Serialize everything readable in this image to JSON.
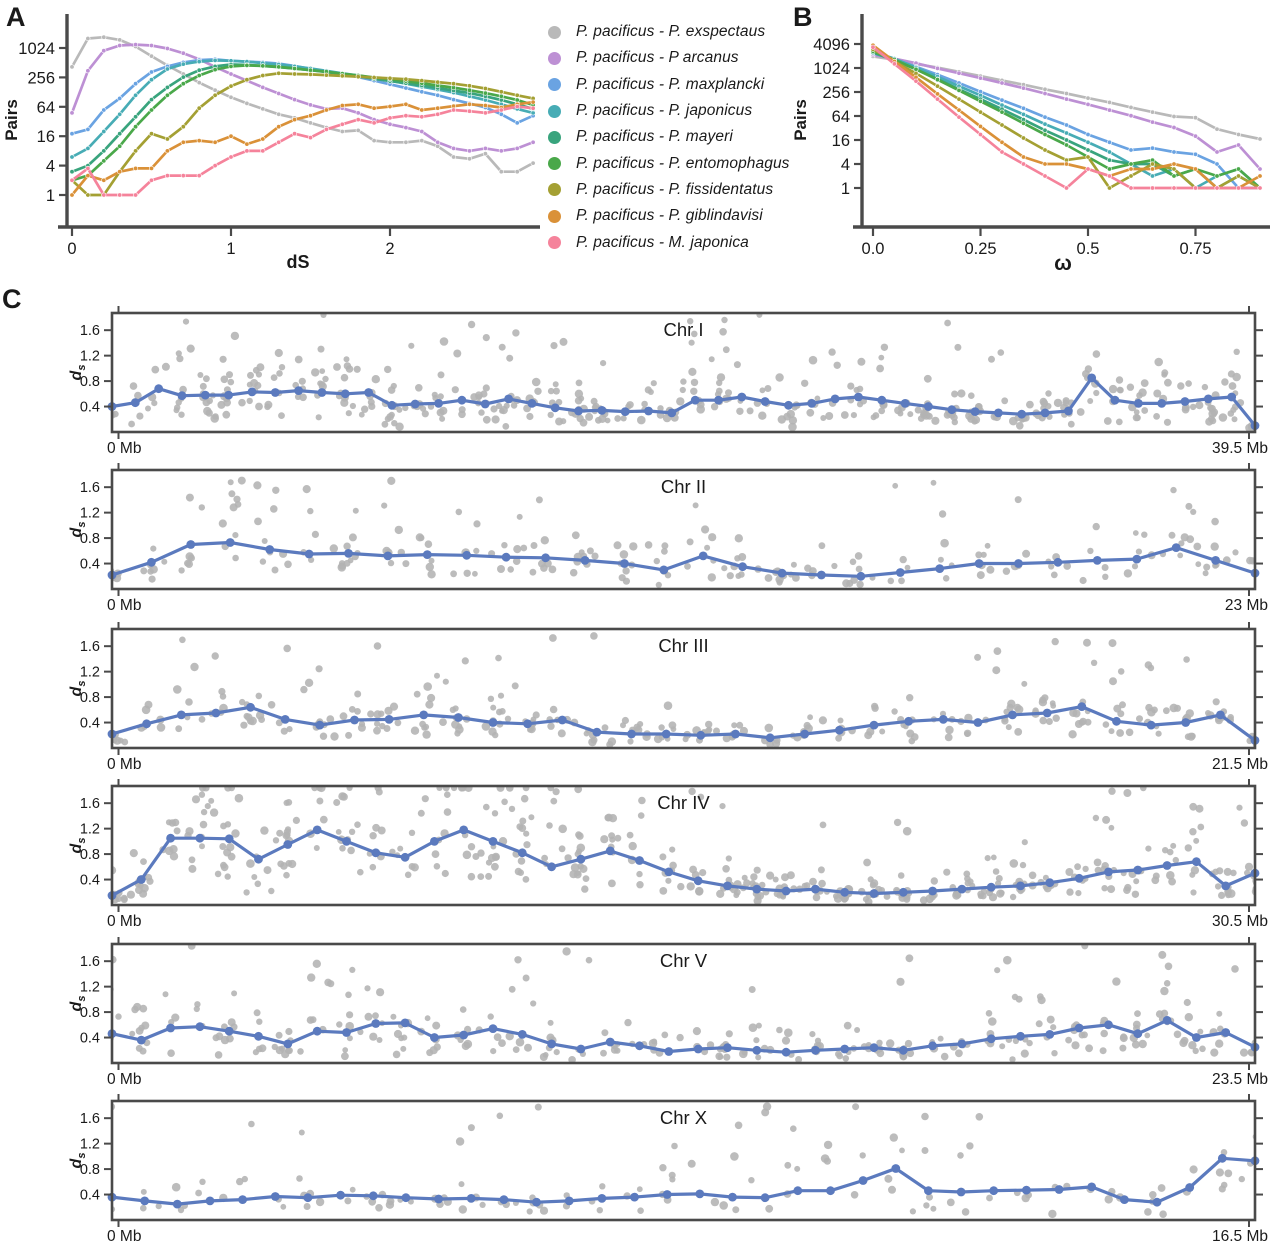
{
  "panel_labels": {
    "a": "A",
    "b": "B",
    "c": "C"
  },
  "colors": {
    "axis": "#4a4a4a",
    "text": "#1a1a1a",
    "mean_line": "#5b7abe",
    "scatter": "#b3b3b3"
  },
  "chart_data": [
    {
      "id": "A",
      "type": "line",
      "ylabel": "Pairs",
      "xlabel": "dS",
      "yscale": "log4",
      "y_ticks": [
        1,
        4,
        16,
        64,
        256,
        1024
      ],
      "x_ticks": [
        {
          "v": 0,
          "label": "0"
        },
        {
          "v": 1,
          "label": "1"
        },
        {
          "v": 2,
          "label": "2"
        }
      ],
      "x_start": 0,
      "x_step": 0.1,
      "series": [
        {
          "name": "P. pacificus - P. exspectaus",
          "color": "#b9b9b9",
          "values": [
            420,
            1600,
            1700,
            1500,
            1100,
            700,
            450,
            300,
            200,
            140,
            100,
            75,
            58,
            45,
            38,
            30,
            24,
            20,
            21,
            13,
            12,
            12,
            13,
            10,
            6,
            5.5,
            7,
            3,
            3,
            4.5
          ]
        },
        {
          "name": "P. pacificus - P arcanus",
          "color": "#bd90d4",
          "values": [
            48,
            350,
            900,
            1150,
            1200,
            1150,
            1000,
            800,
            600,
            420,
            300,
            220,
            160,
            120,
            90,
            70,
            58,
            60,
            48,
            35,
            28,
            24,
            20,
            12,
            9,
            8,
            9,
            8,
            9,
            12
          ]
        },
        {
          "name": "P. pacificus - P. maxplancki",
          "color": "#6aa3e2",
          "values": [
            18,
            22,
            55,
            95,
            190,
            330,
            430,
            520,
            580,
            600,
            560,
            540,
            520,
            490,
            440,
            380,
            330,
            300,
            260,
            220,
            185,
            155,
            130,
            110,
            90,
            75,
            62,
            45,
            30,
            42
          ]
        },
        {
          "name": "P. pacificus - P. japonicus",
          "color": "#47acb5",
          "values": [
            6,
            9,
            20,
            45,
            110,
            230,
            380,
            480,
            540,
            570,
            560,
            540,
            500,
            470,
            430,
            390,
            350,
            310,
            280,
            250,
            220,
            190,
            165,
            145,
            125,
            105,
            88,
            72,
            58,
            48
          ]
        },
        {
          "name": "P. pacificus - P. mayeri",
          "color": "#39a47d",
          "values": [
            3,
            4,
            8,
            18,
            40,
            90,
            160,
            260,
            360,
            430,
            470,
            460,
            440,
            415,
            390,
            360,
            330,
            300,
            270,
            240,
            215,
            195,
            175,
            155,
            138,
            122,
            105,
            88,
            72,
            58
          ]
        },
        {
          "name": "P. pacificus - P. entomophagus",
          "color": "#4aa84a",
          "values": [
            2,
            2.5,
            5,
            10,
            25,
            55,
            110,
            190,
            280,
            370,
            430,
            450,
            440,
            420,
            390,
            360,
            335,
            305,
            280,
            255,
            235,
            215,
            195,
            175,
            158,
            140,
            122,
            105,
            88,
            70
          ]
        },
        {
          "name": "P. pacificus - P. fissidentatus",
          "color": "#a4a033",
          "values": [
            2,
            1,
            1,
            3,
            8,
            18,
            14,
            25,
            60,
            110,
            170,
            230,
            280,
            310,
            300,
            295,
            285,
            275,
            265,
            255,
            245,
            235,
            220,
            205,
            190,
            172,
            152,
            130,
            110,
            95
          ]
        },
        {
          "name": "P. pacificus - P. giblindavisi",
          "color": "#da9138",
          "values": [
            1,
            2.5,
            2,
            3,
            3.5,
            3.5,
            8,
            12,
            13,
            12,
            16,
            11,
            14,
            25,
            35,
            42,
            55,
            68,
            72,
            60,
            65,
            72,
            55,
            60,
            66,
            72,
            68,
            62,
            72,
            80
          ]
        },
        {
          "name": "P. pacificus - M. japonica",
          "color": "#f5839b",
          "values": [
            2,
            3.5,
            1,
            1,
            1,
            2,
            2.5,
            2.5,
            2.5,
            4,
            6,
            8,
            8,
            12,
            18,
            15,
            22,
            28,
            35,
            30,
            38,
            42,
            40,
            45,
            55,
            52,
            48,
            55,
            65,
            60
          ]
        }
      ]
    },
    {
      "id": "B",
      "type": "line",
      "ylabel": "Pairs",
      "xlabel": "ω",
      "yscale": "log4",
      "y_ticks": [
        1,
        4,
        16,
        64,
        256,
        1024,
        4096
      ],
      "x_ticks": [
        {
          "v": 0,
          "label": "0.0"
        },
        {
          "v": 0.25,
          "label": "0.25"
        },
        {
          "v": 0.5,
          "label": "0.5"
        },
        {
          "v": 0.75,
          "label": "0.75"
        }
      ],
      "x_start": 0,
      "x_step": 0.05,
      "series": [
        {
          "name": "P. pacificus - P. exspectaus",
          "color": "#b9b9b9",
          "values": [
            2000,
            1650,
            1300,
            1050,
            820,
            640,
            500,
            390,
            300,
            235,
            180,
            140,
            105,
            80,
            62,
            58,
            30,
            22,
            17
          ]
        },
        {
          "name": "P. pacificus - P arcanus",
          "color": "#bd90d4",
          "values": [
            2200,
            1750,
            1350,
            1000,
            760,
            570,
            430,
            320,
            235,
            170,
            125,
            90,
            65,
            45,
            33,
            20,
            8,
            12,
            3
          ]
        },
        {
          "name": "P. pacificus - P. maxplancki",
          "color": "#6aa3e2",
          "values": [
            2400,
            1700,
            1100,
            700,
            430,
            260,
            160,
            100,
            60,
            38,
            22,
            14,
            9,
            10,
            8,
            7,
            4,
            1,
            1
          ]
        },
        {
          "name": "P. pacificus - P. japonicus",
          "color": "#47acb5",
          "values": [
            2600,
            1750,
            1050,
            620,
            360,
            210,
            120,
            70,
            40,
            24,
            14,
            8,
            4,
            2,
            3,
            1,
            2,
            3,
            1
          ]
        },
        {
          "name": "P. pacificus - P. mayeri",
          "color": "#39a47d",
          "values": [
            2500,
            1600,
            950,
            540,
            300,
            170,
            95,
            52,
            28,
            16,
            9,
            5,
            4,
            4,
            2,
            3,
            1,
            2,
            1
          ]
        },
        {
          "name": "P. pacificus - P. entomophagus",
          "color": "#4aa84a",
          "values": [
            2700,
            1650,
            950,
            520,
            280,
            150,
            80,
            42,
            22,
            12,
            6,
            3,
            4,
            5,
            2,
            3,
            2,
            3,
            1
          ]
        },
        {
          "name": "P. pacificus - P. fissidentatus",
          "color": "#a4a033",
          "values": [
            3000,
            1500,
            750,
            360,
            170,
            80,
            38,
            18,
            9,
            5,
            6,
            1,
            2,
            4,
            3,
            1,
            1,
            2,
            1
          ]
        },
        {
          "name": "P. pacificus - P. giblindavisi",
          "color": "#da9138",
          "values": [
            3800,
            1500,
            600,
            230,
            90,
            35,
            14,
            6,
            4,
            4,
            3,
            2,
            3,
            3,
            4,
            3,
            1,
            1,
            2
          ]
        },
        {
          "name": "P. pacificus - M. japonica",
          "color": "#f5839b",
          "values": [
            3400,
            1300,
            480,
            170,
            60,
            22,
            8,
            4,
            2,
            1,
            3,
            2,
            1,
            1,
            1,
            1,
            1,
            1,
            1
          ]
        }
      ]
    },
    {
      "id": "C",
      "type": "scatter-line",
      "ylabel": {
        "base": "d",
        "sub": "s"
      },
      "y_ticks": [
        0.4,
        0.8,
        1.2,
        1.6
      ],
      "y_max": 1.87,
      "panels": [
        {
          "title": "Chr I",
          "length_mb": 39.5,
          "x_min_label": "0 Mb",
          "x_max_label": "39.5 Mb",
          "line_values": [
            0.4,
            0.46,
            0.68,
            0.57,
            0.58,
            0.58,
            0.63,
            0.62,
            0.65,
            0.62,
            0.6,
            0.62,
            0.42,
            0.44,
            0.45,
            0.5,
            0.44,
            0.52,
            0.45,
            0.38,
            0.33,
            0.34,
            0.32,
            0.33,
            0.3,
            0.5,
            0.5,
            0.55,
            0.48,
            0.42,
            0.45,
            0.52,
            0.55,
            0.5,
            0.45,
            0.4,
            0.35,
            0.32,
            0.3,
            0.28,
            0.3,
            0.33,
            0.85,
            0.5,
            0.45,
            0.45,
            0.48,
            0.52,
            0.55,
            0.1
          ],
          "scatter": {
            "seed": 11,
            "base": 5,
            "var": 8,
            "spread": 0.5,
            "outlier_p": 0.04
          }
        },
        {
          "title": "Chr II",
          "length_mb": 23,
          "x_min_label": "0 Mb",
          "x_max_label": "23 Mb",
          "line_values": [
            0.22,
            0.42,
            0.7,
            0.73,
            0.62,
            0.55,
            0.56,
            0.52,
            0.54,
            0.53,
            0.5,
            0.49,
            0.45,
            0.4,
            0.3,
            0.52,
            0.35,
            0.25,
            0.22,
            0.2,
            0.26,
            0.32,
            0.4,
            0.4,
            0.42,
            0.45,
            0.47,
            0.65,
            0.45,
            0.25
          ],
          "scatter": {
            "seed": 22,
            "base": 5,
            "var": 7,
            "spread": 0.5,
            "outlier_p": 0.04
          }
        },
        {
          "title": "Chr III",
          "length_mb": 21.5,
          "x_min_label": "0 Mb",
          "x_max_label": "21.5 Mb",
          "line_values": [
            0.22,
            0.38,
            0.52,
            0.55,
            0.64,
            0.45,
            0.36,
            0.44,
            0.45,
            0.52,
            0.48,
            0.4,
            0.38,
            0.44,
            0.25,
            0.22,
            0.22,
            0.2,
            0.22,
            0.16,
            0.22,
            0.28,
            0.36,
            0.42,
            0.45,
            0.4,
            0.52,
            0.55,
            0.65,
            0.42,
            0.36,
            0.4,
            0.52,
            0.12
          ],
          "scatter": {
            "seed": 33,
            "base": 5,
            "var": 7,
            "spread": 0.5,
            "outlier_p": 0.04
          }
        },
        {
          "title": "Chr IV",
          "length_mb": 30.5,
          "x_min_label": "0 Mb",
          "x_max_label": "30.5 Mb",
          "line_values": [
            0.15,
            0.4,
            1.05,
            1.05,
            1.04,
            0.72,
            0.95,
            1.18,
            1.0,
            0.82,
            0.75,
            1.0,
            1.18,
            1.0,
            0.82,
            0.6,
            0.72,
            0.85,
            0.7,
            0.52,
            0.38,
            0.3,
            0.25,
            0.22,
            0.25,
            0.2,
            0.18,
            0.2,
            0.22,
            0.25,
            0.28,
            0.3,
            0.35,
            0.42,
            0.52,
            0.55,
            0.62,
            0.68,
            0.3,
            0.5
          ],
          "scatter": {
            "seed": 44,
            "base": 7,
            "var": 9,
            "spread": 0.5,
            "outlier_p": 0.05
          }
        },
        {
          "title": "Chr V",
          "length_mb": 23.5,
          "x_min_label": "0 Mb",
          "x_max_label": "23.5 Mb",
          "line_values": [
            0.46,
            0.36,
            0.55,
            0.57,
            0.5,
            0.42,
            0.3,
            0.5,
            0.48,
            0.62,
            0.63,
            0.4,
            0.44,
            0.54,
            0.45,
            0.3,
            0.22,
            0.33,
            0.27,
            0.18,
            0.22,
            0.24,
            0.2,
            0.17,
            0.2,
            0.22,
            0.24,
            0.2,
            0.27,
            0.3,
            0.38,
            0.42,
            0.45,
            0.55,
            0.6,
            0.46,
            0.67,
            0.4,
            0.48,
            0.25
          ],
          "scatter": {
            "seed": 55,
            "base": 4,
            "var": 7,
            "spread": 0.55,
            "outlier_p": 0.05
          }
        },
        {
          "title": "Chr X",
          "length_mb": 16.5,
          "x_min_label": "0 Mb",
          "x_max_label": "16.5 Mb",
          "line_values": [
            0.36,
            0.3,
            0.25,
            0.3,
            0.32,
            0.37,
            0.35,
            0.39,
            0.38,
            0.35,
            0.33,
            0.34,
            0.32,
            0.28,
            0.3,
            0.34,
            0.36,
            0.4,
            0.41,
            0.36,
            0.35,
            0.46,
            0.46,
            0.62,
            0.81,
            0.46,
            0.44,
            0.46,
            0.47,
            0.48,
            0.52,
            0.32,
            0.28,
            0.51,
            0.97,
            0.93
          ],
          "scatter": {
            "seed": 66,
            "base": 2,
            "var": 5,
            "spread": 0.55,
            "outlier_p": 0.05
          }
        }
      ]
    }
  ]
}
